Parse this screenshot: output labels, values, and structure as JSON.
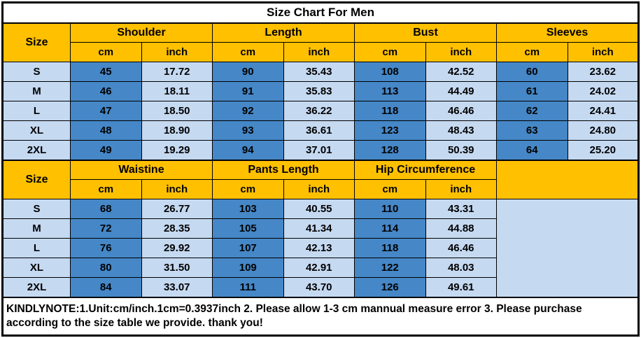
{
  "chart_data": [
    {
      "type": "table",
      "title": "Size Chart For Men",
      "size_header": "Size",
      "unit_headers": [
        "cm",
        "inch"
      ],
      "groups": [
        "Shoulder",
        "Length",
        "Bust",
        "Sleeves"
      ],
      "rows": [
        [
          "S",
          "45",
          "17.72",
          "90",
          "35.43",
          "108",
          "42.52",
          "60",
          "23.62"
        ],
        [
          "M",
          "46",
          "18.11",
          "91",
          "35.83",
          "113",
          "44.49",
          "61",
          "24.02"
        ],
        [
          "L",
          "47",
          "18.50",
          "92",
          "36.22",
          "118",
          "46.46",
          "62",
          "24.41"
        ],
        [
          "XL",
          "48",
          "18.90",
          "93",
          "36.61",
          "123",
          "48.43",
          "63",
          "24.80"
        ],
        [
          "2XL",
          "49",
          "19.29",
          "94",
          "37.01",
          "128",
          "50.39",
          "64",
          "25.20"
        ]
      ]
    },
    {
      "type": "table",
      "size_header": "Size",
      "unit_headers": [
        "cm",
        "inch"
      ],
      "groups": [
        "Waistine",
        "Pants Length",
        "Hip Circumference"
      ],
      "filler_cols": 2,
      "rows": [
        [
          "S",
          "68",
          "26.77",
          "103",
          "40.55",
          "110",
          "43.31"
        ],
        [
          "M",
          "72",
          "28.35",
          "105",
          "41.34",
          "114",
          "44.88"
        ],
        [
          "L",
          "76",
          "29.92",
          "107",
          "42.13",
          "118",
          "46.46"
        ],
        [
          "XL",
          "80",
          "31.50",
          "109",
          "42.91",
          "122",
          "48.03"
        ],
        [
          "2XL",
          "84",
          "33.07",
          "111",
          "43.70",
          "126",
          "49.61"
        ]
      ]
    }
  ],
  "note": "KINDLYNOTE:1.Unit:cm/inch.1cm=0.3937inch 2. Please allow 1-3 cm mannual measure error 3. Please purchase according to the size table we provide. thank you!",
  "colors": {
    "header_bg": "#FFC000",
    "cm_cell_bg": "#4587C7",
    "light_cell_bg": "#C5D9F1",
    "title_bg": "#FFFFFF",
    "border": "#000000",
    "text": "#000000"
  }
}
